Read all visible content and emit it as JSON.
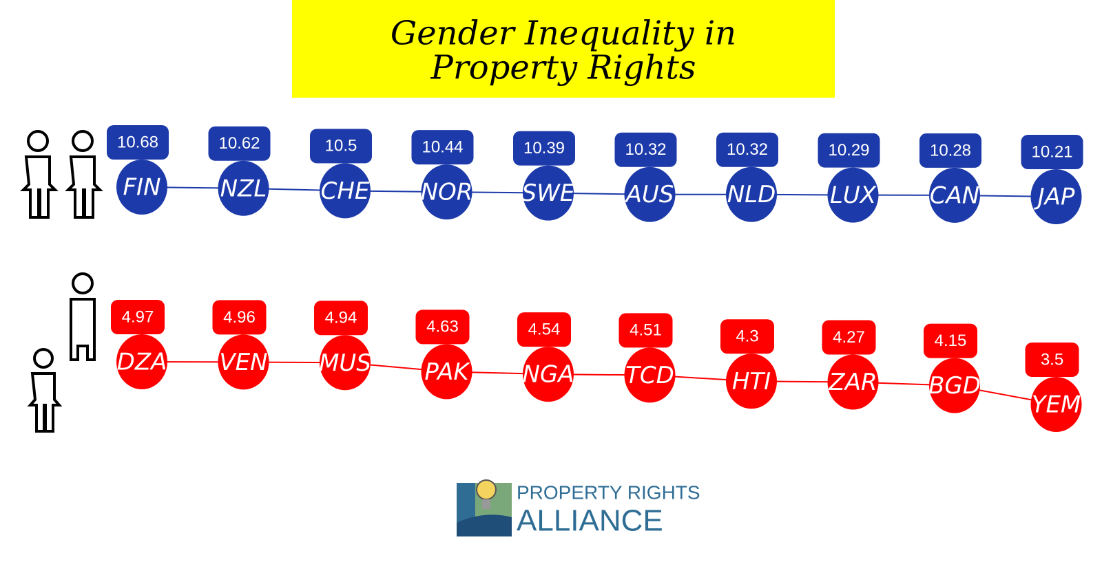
{
  "title": [
    "Gender Inequality in",
    "Property Rights"
  ],
  "logo": [
    "PROPERTY RIGHTS",
    "ALLIANCE"
  ],
  "chart_data": [
    {
      "type": "line",
      "color": "#1c3aa9",
      "categories": [
        "FIN",
        "NZL",
        "CHE",
        "NOR",
        "SWE",
        "AUS",
        "NLD",
        "LUX",
        "CAN",
        "JAP"
      ],
      "values": [
        10.68,
        10.62,
        10.5,
        10.44,
        10.39,
        10.32,
        10.32,
        10.29,
        10.28,
        10.21
      ]
    },
    {
      "type": "line",
      "color": "#ff0000",
      "categories": [
        "DZA",
        "VEN",
        "MUS",
        "PAK",
        "NGA",
        "TCD",
        "HTI",
        "ZAR",
        "BGD",
        "YEM"
      ],
      "values": [
        4.97,
        4.96,
        4.94,
        4.63,
        4.54,
        4.51,
        4.3,
        4.27,
        4.15,
        3.5
      ]
    }
  ]
}
